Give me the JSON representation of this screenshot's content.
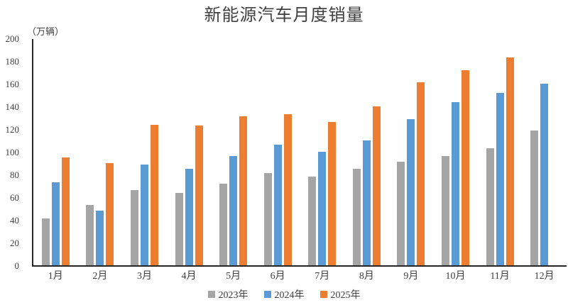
{
  "chart_data": {
    "type": "bar",
    "title": "新能源汽车月度销量",
    "y_axis_unit": "（万辆）",
    "categories": [
      "1月",
      "2月",
      "3月",
      "4月",
      "5月",
      "6月",
      "7月",
      "8月",
      "9月",
      "10月",
      "11月",
      "12月"
    ],
    "series": [
      {
        "name": "2023年",
        "color": "#A5A5A5",
        "values": [
          41,
          53,
          66,
          64,
          72,
          81,
          78,
          85,
          91,
          96,
          103,
          119
        ]
      },
      {
        "name": "2024年",
        "color": "#5B9BD5",
        "values": [
          73,
          48,
          89,
          85,
          96,
          106,
          100,
          110,
          129,
          144,
          152,
          160
        ]
      },
      {
        "name": "2025年",
        "color": "#ED7D31",
        "values": [
          95,
          90,
          124,
          123,
          131,
          133,
          126,
          140,
          161,
          172,
          183,
          null
        ]
      }
    ],
    "ylim": [
      0,
      200
    ],
    "yticks": [
      0,
      20,
      40,
      60,
      80,
      100,
      120,
      140,
      160,
      180,
      200
    ],
    "grid": false,
    "legend_position": "bottom",
    "axis_color": "#262626",
    "text_color": "#404040"
  }
}
